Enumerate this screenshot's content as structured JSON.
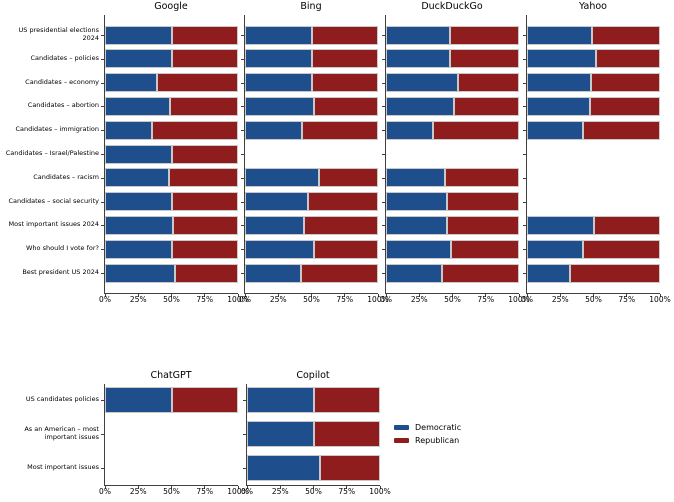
{
  "chart_data": {
    "type": "bar",
    "stacked": true,
    "orientation": "horizontal",
    "unit": "%",
    "xlim": [
      0,
      100
    ],
    "x_tick_labels": [
      "0%",
      "25%",
      "50%",
      "75%",
      "100%"
    ],
    "colors": {
      "democratic": "#1f4e8c",
      "republican": "#8f1d1d"
    },
    "legend": {
      "position": "right-of-bottom-row",
      "items": [
        {
          "label": "Democratic",
          "key": "democratic"
        },
        {
          "label": "Republican",
          "key": "republican"
        }
      ]
    },
    "rows": [
      {
        "categories": [
          "US presidential elections 2024",
          "Candidates – policies",
          "Candidates – economy",
          "Candidates – abortion",
          "Candidates – immigration",
          "Candidates – Israel/Palestine",
          "Candidates – racism",
          "Candidates – social security",
          "Most important issues 2024",
          "Who should I vote for?",
          "Best president US 2024"
        ],
        "panels": [
          {
            "title": "Google",
            "series": [
              {
                "name": "Democratic",
                "values": [
                  50,
                  50,
                  39,
                  49,
                  35,
                  50,
                  48,
                  50,
                  51,
                  50,
                  53
                ]
              },
              {
                "name": "Republican",
                "values": [
                  50,
                  50,
                  61,
                  51,
                  65,
                  50,
                  52,
                  50,
                  49,
                  50,
                  47
                ]
              }
            ]
          },
          {
            "title": "Bing",
            "series": [
              {
                "name": "Democratic",
                "values": [
                  50,
                  50,
                  50,
                  52,
                  43,
                  null,
                  56,
                  47,
                  44,
                  52,
                  42
                ]
              },
              {
                "name": "Republican",
                "values": [
                  50,
                  50,
                  50,
                  48,
                  57,
                  null,
                  44,
                  53,
                  56,
                  48,
                  58
                ]
              }
            ]
          },
          {
            "title": "DuckDuckGo",
            "series": [
              {
                "name": "Democratic",
                "values": [
                  48,
                  48,
                  54,
                  51,
                  35,
                  null,
                  44,
                  46,
                  46,
                  49,
                  42
                ]
              },
              {
                "name": "Republican",
                "values": [
                  52,
                  52,
                  46,
                  49,
                  65,
                  null,
                  56,
                  54,
                  54,
                  51,
                  58
                ]
              }
            ]
          },
          {
            "title": "Yahoo",
            "series": [
              {
                "name": "Democratic",
                "values": [
                  49,
                  52,
                  48,
                  47,
                  42,
                  null,
                  null,
                  null,
                  50,
                  42,
                  32
                ]
              },
              {
                "name": "Republican",
                "values": [
                  51,
                  48,
                  52,
                  53,
                  58,
                  null,
                  null,
                  null,
                  50,
                  58,
                  68
                ]
              }
            ]
          }
        ]
      },
      {
        "categories": [
          "US candidates policies",
          "As an American – most important issues",
          "Most important issues"
        ],
        "panels": [
          {
            "title": "ChatGPT",
            "series": [
              {
                "name": "Democratic",
                "values": [
                  50,
                  null,
                  null
                ]
              },
              {
                "name": "Republican",
                "values": [
                  50,
                  null,
                  null
                ]
              }
            ]
          },
          {
            "title": "Copilot",
            "series": [
              {
                "name": "Democratic",
                "values": [
                  50,
                  50,
                  55
                ]
              },
              {
                "name": "Republican",
                "values": [
                  50,
                  50,
                  45
                ]
              }
            ]
          }
        ]
      }
    ]
  }
}
